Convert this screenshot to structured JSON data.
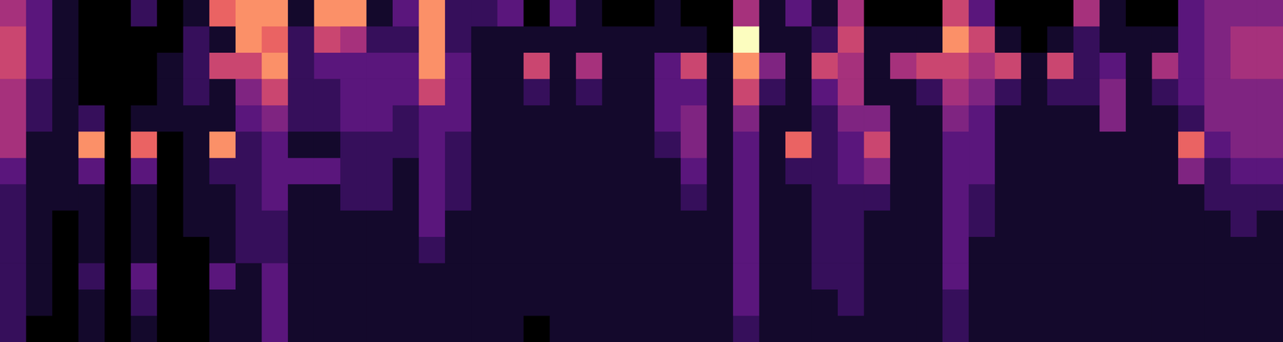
{
  "chart_data": {
    "type": "heatmap",
    "tick_labels": false,
    "grid": false,
    "color_range": [
      0,
      9
    ],
    "cells": [
      [
        5,
        3,
        1,
        0,
        0,
        2,
        0,
        1,
        7,
        8,
        8,
        1,
        8,
        8,
        1,
        3,
        8,
        2,
        2,
        3,
        0,
        3,
        1,
        0,
        0,
        1,
        0,
        0,
        5,
        1,
        3,
        1,
        5,
        0,
        0,
        0,
        6,
        3,
        0,
        0,
        0,
        5,
        1,
        0,
        0,
        3,
        4,
        4,
        4
      ],
      [
        6,
        3,
        1,
        0,
        0,
        0,
        0,
        2,
        1,
        8,
        7,
        2,
        6,
        5,
        2,
        2,
        8,
        2,
        1,
        1,
        1,
        1,
        1,
        1,
        1,
        1,
        1,
        0,
        9,
        1,
        1,
        2,
        6,
        1,
        1,
        1,
        8,
        6,
        1,
        0,
        1,
        2,
        1,
        1,
        1,
        3,
        4,
        5,
        5
      ],
      [
        6,
        3,
        1,
        0,
        0,
        0,
        1,
        2,
        6,
        6,
        8,
        2,
        3,
        3,
        3,
        3,
        8,
        3,
        1,
        1,
        6,
        1,
        5,
        1,
        1,
        3,
        6,
        1,
        8,
        4,
        1,
        6,
        5,
        1,
        5,
        6,
        6,
        5,
        6,
        1,
        6,
        2,
        3,
        1,
        5,
        3,
        4,
        5,
        5
      ],
      [
        5,
        2,
        1,
        0,
        0,
        0,
        1,
        2,
        1,
        4,
        6,
        2,
        2,
        3,
        3,
        3,
        6,
        3,
        1,
        1,
        2,
        1,
        2,
        1,
        1,
        3,
        3,
        1,
        6,
        2,
        1,
        3,
        5,
        1,
        1,
        2,
        5,
        4,
        2,
        1,
        2,
        2,
        4,
        1,
        2,
        3,
        4,
        4,
        4
      ],
      [
        5,
        2,
        1,
        2,
        0,
        1,
        1,
        1,
        1,
        3,
        4,
        2,
        2,
        3,
        3,
        2,
        3,
        3,
        1,
        1,
        1,
        1,
        1,
        1,
        1,
        3,
        4,
        1,
        4,
        1,
        1,
        2,
        4,
        4,
        1,
        1,
        4,
        3,
        1,
        1,
        1,
        1,
        4,
        1,
        1,
        2,
        4,
        4,
        4
      ],
      [
        5,
        1,
        1,
        8,
        0,
        7,
        0,
        1,
        8,
        2,
        3,
        1,
        1,
        2,
        2,
        2,
        3,
        2,
        1,
        1,
        1,
        1,
        1,
        1,
        1,
        2,
        4,
        1,
        3,
        1,
        7,
        2,
        3,
        6,
        1,
        1,
        3,
        3,
        1,
        1,
        1,
        1,
        1,
        1,
        1,
        7,
        3,
        4,
        4
      ],
      [
        3,
        1,
        1,
        3,
        0,
        3,
        0,
        1,
        2,
        2,
        3,
        3,
        3,
        2,
        2,
        1,
        3,
        2,
        1,
        1,
        1,
        1,
        1,
        1,
        1,
        1,
        3,
        1,
        3,
        1,
        2,
        2,
        3,
        4,
        1,
        1,
        3,
        3,
        1,
        1,
        1,
        1,
        1,
        1,
        1,
        4,
        2,
        3,
        3
      ],
      [
        2,
        1,
        1,
        1,
        0,
        1,
        0,
        1,
        1,
        2,
        3,
        1,
        1,
        2,
        2,
        1,
        3,
        2,
        1,
        1,
        1,
        1,
        1,
        1,
        1,
        1,
        2,
        1,
        3,
        1,
        1,
        2,
        2,
        2,
        1,
        1,
        3,
        2,
        1,
        1,
        1,
        1,
        1,
        1,
        1,
        1,
        2,
        2,
        2
      ],
      [
        2,
        1,
        0,
        1,
        0,
        1,
        0,
        1,
        1,
        2,
        2,
        1,
        1,
        1,
        1,
        1,
        3,
        1,
        1,
        1,
        1,
        1,
        1,
        1,
        1,
        1,
        1,
        1,
        3,
        1,
        1,
        2,
        2,
        1,
        1,
        1,
        3,
        2,
        1,
        1,
        1,
        1,
        1,
        1,
        1,
        1,
        1,
        2,
        1
      ],
      [
        2,
        1,
        0,
        1,
        0,
        1,
        0,
        0,
        1,
        2,
        2,
        1,
        1,
        1,
        1,
        1,
        2,
        1,
        1,
        1,
        1,
        1,
        1,
        1,
        1,
        1,
        1,
        1,
        3,
        1,
        1,
        2,
        2,
        1,
        1,
        1,
        3,
        1,
        1,
        1,
        1,
        1,
        1,
        1,
        1,
        1,
        1,
        1,
        1
      ],
      [
        2,
        1,
        0,
        2,
        0,
        3,
        0,
        0,
        3,
        1,
        3,
        1,
        1,
        1,
        1,
        1,
        1,
        1,
        1,
        1,
        1,
        1,
        1,
        1,
        1,
        1,
        1,
        1,
        3,
        1,
        1,
        2,
        2,
        1,
        1,
        1,
        3,
        1,
        1,
        1,
        1,
        1,
        1,
        1,
        1,
        1,
        1,
        1,
        1
      ],
      [
        2,
        1,
        0,
        1,
        0,
        2,
        0,
        0,
        1,
        1,
        3,
        1,
        1,
        1,
        1,
        1,
        1,
        1,
        1,
        1,
        1,
        1,
        1,
        1,
        1,
        1,
        1,
        1,
        3,
        1,
        1,
        1,
        2,
        1,
        1,
        1,
        2,
        1,
        1,
        1,
        1,
        1,
        1,
        1,
        1,
        1,
        1,
        1,
        1
      ],
      [
        2,
        0,
        0,
        1,
        0,
        1,
        0,
        0,
        1,
        1,
        3,
        1,
        1,
        1,
        1,
        1,
        1,
        1,
        1,
        1,
        0,
        1,
        1,
        1,
        1,
        1,
        1,
        1,
        2,
        1,
        1,
        1,
        1,
        1,
        1,
        1,
        2,
        1,
        1,
        1,
        1,
        1,
        1,
        1,
        1,
        1,
        1,
        1,
        1
      ]
    ]
  }
}
